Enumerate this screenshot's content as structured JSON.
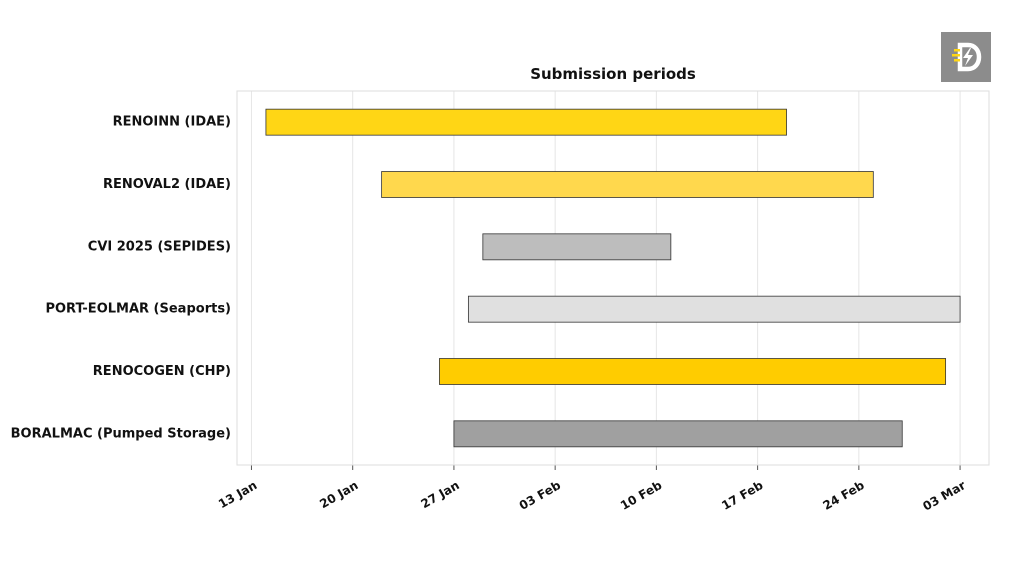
{
  "chart_data": {
    "type": "gantt",
    "title": "Submission periods",
    "xlabel": "",
    "ylabel": "",
    "xlim": [
      "2025-01-12",
      "2025-03-05"
    ],
    "grid": "vertical",
    "x_ticks": [
      {
        "date": "2025-01-13",
        "label": "13 Jan"
      },
      {
        "date": "2025-01-20",
        "label": "20 Jan"
      },
      {
        "date": "2025-01-27",
        "label": "27 Jan"
      },
      {
        "date": "2025-02-03",
        "label": "03 Feb"
      },
      {
        "date": "2025-02-10",
        "label": "10 Feb"
      },
      {
        "date": "2025-02-17",
        "label": "17 Feb"
      },
      {
        "date": "2025-02-24",
        "label": "24 Feb"
      },
      {
        "date": "2025-03-03",
        "label": "03 Mar"
      }
    ],
    "tasks": [
      {
        "label": "RENOINN (IDAE)",
        "start": "2025-01-14",
        "end": "2025-02-19",
        "color": "#FFD615"
      },
      {
        "label": "RENOVAL2 (IDAE)",
        "start": "2025-01-22",
        "end": "2025-02-25",
        "color": "#FFD84D"
      },
      {
        "label": "CVI 2025 (SEPIDES)",
        "start": "2025-01-29",
        "end": "2025-02-11",
        "color": "#BDBDBD"
      },
      {
        "label": "PORT-EOLMAR (Seaports)",
        "start": "2025-01-28",
        "end": "2025-03-03",
        "color": "#E0E0E0"
      },
      {
        "label": "RENOCOGEN (CHP)",
        "start": "2025-01-26",
        "end": "2025-03-02",
        "color": "#FFCC00"
      },
      {
        "label": "BORALMAC (Pumped Storage)",
        "start": "2025-01-27",
        "end": "2025-02-27",
        "color": "#A0A0A0"
      }
    ]
  },
  "logo": {
    "icon": "lightning-d-logo-icon",
    "background": "#8C8C8C"
  }
}
